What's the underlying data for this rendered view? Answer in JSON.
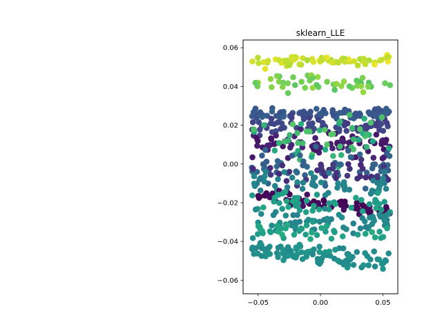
{
  "chart_data": {
    "type": "scatter",
    "title": "sklearn_LLE",
    "xlabel": "",
    "ylabel": "",
    "xlim": [
      -0.062,
      0.062
    ],
    "ylim": [
      -0.067,
      0.064
    ],
    "x_ticks": [
      -0.05,
      0.0,
      0.05
    ],
    "x_tick_labels": [
      "−0.05",
      "0.00",
      "0.05"
    ],
    "y_ticks": [
      -0.06,
      -0.04,
      -0.02,
      0.0,
      0.02,
      0.04,
      0.06
    ],
    "y_tick_labels": [
      "−0.06",
      "−0.04",
      "−0.02",
      "0.00",
      "0.02",
      "0.04",
      "0.06"
    ],
    "grid": false,
    "legend": "none",
    "colormap": "viridis",
    "bands": [
      {
        "y_center": 0.053,
        "spread": 0.0025,
        "slope": 0.02,
        "color_value": 0.95,
        "count": 70
      },
      {
        "y_center": 0.042,
        "spread": 0.0045,
        "slope": 0.0,
        "color_value": 0.85,
        "count": 45
      },
      {
        "y_center": 0.026,
        "spread": 0.0025,
        "slope": 0.0,
        "color_value": 0.35,
        "count": 90
      },
      {
        "y_center": 0.02,
        "spread": 0.004,
        "slope": 0.0,
        "color_value": 0.25,
        "count": 70
      },
      {
        "y_center": 0.01,
        "spread": 0.006,
        "slope": 0.0,
        "color_value": 0.1,
        "count": 75
      },
      {
        "y_center": 0.014,
        "spread": 0.012,
        "slope": 0.0,
        "color_value": 0.78,
        "count": 50
      },
      {
        "y_center": -0.002,
        "spread": 0.008,
        "slope": 0.0,
        "color_value": 0.4,
        "count": 60
      },
      {
        "y_center": -0.005,
        "spread": 0.006,
        "slope": 0.0,
        "color_value": 0.18,
        "count": 40
      },
      {
        "y_center": -0.011,
        "spread": 0.006,
        "slope": 0.0,
        "color_value": 0.55,
        "count": 50
      },
      {
        "y_center": -0.02,
        "spread": 0.003,
        "slope": -0.08,
        "color_value": 0.02,
        "count": 70
      },
      {
        "y_center": -0.02,
        "spread": 0.005,
        "slope": 0.0,
        "color_value": 0.7,
        "count": 45
      },
      {
        "y_center": -0.03,
        "spread": 0.005,
        "slope": 0.0,
        "color_value": 0.58,
        "count": 60
      },
      {
        "y_center": -0.035,
        "spread": 0.004,
        "slope": 0.0,
        "color_value": 0.72,
        "count": 40
      },
      {
        "y_center": -0.047,
        "spread": 0.004,
        "slope": -0.08,
        "color_value": 0.62,
        "count": 100
      }
    ]
  }
}
